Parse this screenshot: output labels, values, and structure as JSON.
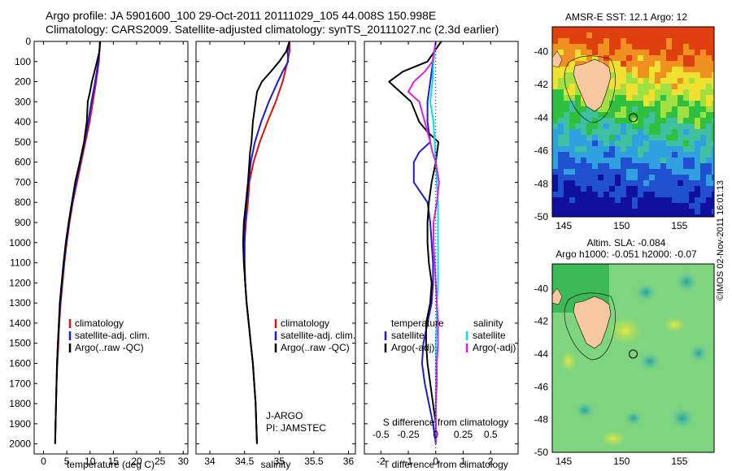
{
  "header": {
    "title_line1": "Argo profile: JA 5901600_100 29-Oct-2011 20111029_105 44.008S 150.998E",
    "title_line2": "Climatology: CARS2009. Satellite-adjusted climatology: synTS_20111027.nc (2.3d earlier)"
  },
  "stamp": "©IMOS 02-Nov-2011 16:01:13",
  "colors": {
    "climatology": "#e01010",
    "satellite": "#1a1ae0",
    "argo": "#000000",
    "sal_satellite": "#00e5e5",
    "sal_argo": "#e020e0"
  },
  "panels": {
    "temperature": {
      "xlabel": "temperature (deg C)",
      "legend": [
        "climatology",
        "satellite-adj. clim.",
        "Argo(..raw -QC)"
      ]
    },
    "salinity": {
      "xlabel": "salinity",
      "legend": [
        "climatology",
        "satellite-adj. clim.",
        "Argo(..raw -QC)"
      ],
      "annotation1": "J-ARGO",
      "annotation2": "PI: JAMSTEC"
    },
    "difference": {
      "xlabel": "T difference from climatology",
      "top_axis_label": "S difference from climatology",
      "legend_temp_title": "temperature",
      "legend_temp": [
        "satellite",
        "Argo(-adj)"
      ],
      "legend_sal_title": "salinity",
      "legend_sal": [
        "satellite",
        "Argo(-adj)"
      ]
    },
    "sst_map": {
      "title": "AMSR-E SST: 12.1  Argo: 12"
    },
    "sla_map": {
      "title1": "Altim. SLA: -0.084",
      "title2": "Argo h1000: -0.051 h2000: -0.07"
    }
  },
  "chart_data": [
    {
      "type": "line",
      "name": "temperature",
      "xlabel": "temperature (deg C)",
      "ylabel": "",
      "xlim": [
        -2,
        31
      ],
      "ylim": [
        2050,
        0
      ],
      "xticks": [
        0,
        5,
        10,
        15,
        20,
        25,
        30
      ],
      "yticks": [
        0,
        100,
        200,
        300,
        400,
        500,
        600,
        700,
        800,
        900,
        1000,
        1100,
        1200,
        1300,
        1400,
        1500,
        1600,
        1700,
        1800,
        1900,
        2000
      ],
      "series": [
        {
          "name": "climatology",
          "color": "#e01010",
          "depth": [
            0,
            50,
            100,
            200,
            300,
            400,
            500,
            600,
            700,
            800,
            900,
            1000,
            1100,
            1200,
            1300,
            1400,
            1500,
            1600,
            1700,
            1800,
            1900,
            2000
          ],
          "values": [
            12.1,
            12.0,
            11.9,
            11.3,
            10.6,
            9.9,
            9.0,
            8.1,
            7.2,
            6.3,
            5.6,
            5.0,
            4.5,
            4.1,
            3.7,
            3.4,
            3.2,
            3.0,
            2.8,
            2.7,
            2.6,
            2.5
          ]
        },
        {
          "name": "satellite-adj. clim.",
          "color": "#1a1ae0",
          "depth": [
            0,
            50,
            100,
            200,
            300,
            400,
            500,
            600,
            700,
            800,
            900,
            1000,
            1100,
            1200,
            1300,
            1400,
            1500,
            1600,
            1700,
            1800,
            1900,
            2000
          ],
          "values": [
            12.1,
            12.0,
            11.8,
            11.1,
            10.3,
            9.6,
            8.8,
            7.9,
            7.0,
            6.2,
            5.5,
            4.9,
            4.4,
            4.0,
            3.6,
            3.3,
            3.1,
            2.9,
            2.8,
            2.7,
            2.6,
            2.5
          ]
        },
        {
          "name": "Argo(..raw -QC)",
          "color": "#000000",
          "depth": [
            0,
            50,
            100,
            200,
            250,
            300,
            400,
            500,
            600,
            700,
            800,
            900,
            1000,
            1100,
            1200,
            1300,
            1400,
            1500,
            1600,
            1700,
            1800,
            1900,
            2000
          ],
          "values": [
            12.2,
            12.0,
            11.5,
            10.4,
            10.0,
            9.5,
            9.3,
            8.7,
            7.8,
            6.8,
            6.1,
            5.4,
            4.8,
            4.3,
            3.9,
            3.5,
            3.3,
            3.1,
            2.9,
            2.8,
            2.7,
            2.6,
            2.5
          ]
        }
      ]
    },
    {
      "type": "line",
      "name": "salinity",
      "xlabel": "salinity",
      "ylabel": "",
      "xlim": [
        33.8,
        36.1
      ],
      "ylim": [
        2050,
        0
      ],
      "xticks": [
        34,
        34.5,
        35,
        35.5,
        36
      ],
      "yticks": [],
      "series": [
        {
          "name": "climatology",
          "color": "#e01010",
          "depth": [
            0,
            50,
            100,
            200,
            300,
            400,
            500,
            600,
            700,
            800,
            900,
            1000,
            1100,
            1200,
            1300,
            1400,
            1500,
            1600,
            1700,
            1800,
            1900,
            2000
          ],
          "values": [
            35.15,
            35.15,
            35.12,
            35.05,
            34.95,
            34.83,
            34.72,
            34.63,
            34.57,
            34.55,
            34.52,
            34.5,
            34.5,
            34.51,
            34.53,
            34.56,
            34.59,
            34.62,
            34.64,
            34.66,
            34.67,
            34.68
          ]
        },
        {
          "name": "satellite-adj. clim.",
          "color": "#1a1ae0",
          "depth": [
            0,
            50,
            100,
            150,
            200,
            300,
            400,
            500,
            600,
            700,
            800,
            900,
            1000,
            1100,
            1200,
            1300,
            1400,
            1500,
            1600,
            1700,
            1800,
            1900,
            2000
          ],
          "values": [
            35.15,
            35.12,
            35.13,
            35.05,
            34.98,
            34.85,
            34.74,
            34.65,
            34.59,
            34.56,
            34.53,
            34.51,
            34.5,
            34.5,
            34.51,
            34.53,
            34.56,
            34.59,
            34.62,
            34.64,
            34.66,
            34.67,
            34.68
          ]
        },
        {
          "name": "Argo(..raw -QC)",
          "color": "#000000",
          "depth": [
            0,
            50,
            100,
            150,
            200,
            250,
            300,
            400,
            500,
            550,
            600,
            650,
            700,
            800,
            900,
            1000,
            1100,
            1200,
            1300,
            1400,
            1500,
            1600,
            1700,
            1800,
            1900,
            2000
          ],
          "values": [
            35.15,
            35.1,
            35.0,
            34.88,
            34.75,
            34.68,
            34.66,
            34.62,
            34.6,
            34.58,
            34.57,
            34.56,
            34.55,
            34.52,
            34.49,
            34.48,
            34.49,
            34.51,
            34.53,
            34.56,
            34.59,
            34.62,
            34.64,
            34.66,
            34.67,
            34.68
          ]
        }
      ]
    },
    {
      "type": "line",
      "name": "difference",
      "xlabel": "T difference from climatology",
      "x2label": "S difference from climatology",
      "xlim": [
        -2.6,
        3.0
      ],
      "x2lim": [
        -0.65,
        0.75
      ],
      "ylim": [
        2050,
        0
      ],
      "xticks": [
        -2,
        -1,
        0,
        1,
        2
      ],
      "x2ticks": [
        -0.5,
        -0.25,
        0,
        0.25,
        0.5
      ],
      "series": [
        {
          "name": "satellite",
          "group": "temperature",
          "color": "#1a1ae0",
          "depth": [
            0,
            100,
            200,
            300,
            400,
            500,
            550,
            600,
            700,
            800,
            900,
            1000,
            1100,
            1200,
            1300,
            1400,
            1500,
            1600,
            1700,
            1800,
            1900,
            2000
          ],
          "values": [
            0,
            -0.1,
            -0.2,
            -0.3,
            -0.3,
            -0.2,
            -0.6,
            -0.8,
            -0.8,
            -0.3,
            -0.2,
            -0.15,
            -0.1,
            -0.1,
            -0.15,
            -0.3,
            -0.45,
            -0.5,
            -0.4,
            -0.25,
            -0.1,
            0
          ]
        },
        {
          "name": "Argo(-adj)",
          "group": "temperature",
          "color": "#000000",
          "depth": [
            0,
            100,
            150,
            200,
            250,
            300,
            400,
            450,
            500,
            600,
            700,
            800,
            900,
            1000,
            1100,
            1200,
            1300,
            1400,
            1500,
            1600,
            1700,
            1800,
            1900,
            2000
          ],
          "values": [
            0.2,
            -0.3,
            -1.2,
            -1.7,
            -1.3,
            -0.9,
            -0.6,
            -0.3,
            0.1,
            0,
            -0.15,
            -0.25,
            -0.3,
            -0.3,
            -0.25,
            -0.15,
            -0.2,
            -0.35,
            -0.35,
            -0.3,
            -0.2,
            -0.1,
            0,
            0
          ]
        },
        {
          "name": "satellite",
          "group": "salinity",
          "color": "#00e5e5",
          "depth": [
            0,
            100,
            200,
            300,
            400,
            500,
            600,
            700,
            800,
            900,
            1000,
            1100,
            1200,
            1300,
            1400,
            1500,
            1600,
            1700,
            1800,
            1900,
            2000
          ],
          "values": [
            0.0,
            -0.02,
            -0.03,
            -0.05,
            -0.02,
            -0.01,
            0.0,
            0.01,
            0.02,
            0.02,
            0.02,
            0.02,
            0.02,
            0.01,
            0.01,
            0.0,
            0.0,
            0.0,
            0.0,
            0.0,
            0.0
          ]
        },
        {
          "name": "Argo(-adj)",
          "group": "salinity",
          "color": "#e020e0",
          "depth": [
            0,
            100,
            150,
            200,
            250,
            300,
            400,
            500,
            550,
            600,
            700,
            800,
            900,
            1000,
            1100,
            1200,
            1300,
            1400,
            1500,
            1600,
            1700,
            1800,
            1900,
            2000
          ],
          "values": [
            0.0,
            -0.03,
            -0.1,
            -0.2,
            -0.25,
            -0.15,
            -0.1,
            -0.05,
            -0.03,
            0.0,
            0.03,
            0.01,
            -0.02,
            -0.02,
            -0.01,
            0.0,
            0.01,
            0.02,
            0.02,
            0.01,
            0.01,
            0.0,
            0.0,
            0.0
          ]
        }
      ]
    },
    {
      "type": "heatmap",
      "name": "sst_map",
      "title": "AMSR-E SST: 12.1  Argo: 12",
      "xlim": [
        144,
        158
      ],
      "ylim": [
        -50,
        -38.5
      ],
      "xticks": [
        145,
        150,
        155
      ],
      "yticks": [
        -40,
        -42,
        -44,
        -46,
        -48,
        -50
      ],
      "marker": {
        "lon": 151.0,
        "lat": -44.0
      }
    },
    {
      "type": "heatmap",
      "name": "sla_map",
      "title": "Altim. SLA: -0.084",
      "xlim": [
        144,
        158
      ],
      "ylim": [
        -50,
        -38.5
      ],
      "xticks": [
        145,
        150,
        155
      ],
      "yticks": [
        -40,
        -42,
        -44,
        -46,
        -48,
        -50
      ],
      "marker": {
        "lon": 151.0,
        "lat": -44.0
      }
    }
  ]
}
